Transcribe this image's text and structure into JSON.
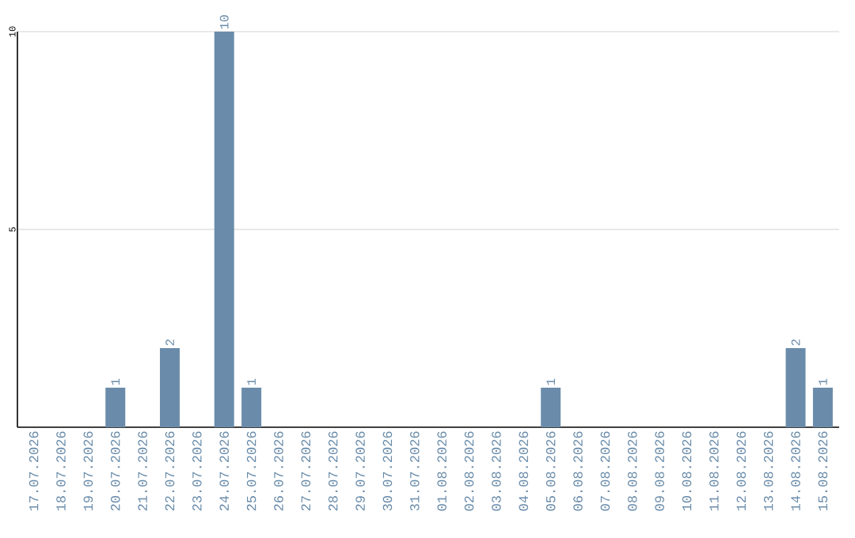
{
  "chart_data": {
    "type": "bar",
    "categories": [
      "17.07.2026",
      "18.07.2026",
      "19.07.2026",
      "20.07.2026",
      "21.07.2026",
      "22.07.2026",
      "23.07.2026",
      "24.07.2026",
      "25.07.2026",
      "26.07.2026",
      "27.07.2026",
      "28.07.2026",
      "29.07.2026",
      "30.07.2026",
      "31.07.2026",
      "01.08.2026",
      "02.08.2026",
      "03.08.2026",
      "04.08.2026",
      "05.08.2026",
      "06.08.2026",
      "07.08.2026",
      "08.08.2026",
      "09.08.2026",
      "10.08.2026",
      "11.08.2026",
      "12.08.2026",
      "13.08.2026",
      "14.08.2026",
      "15.08.2026"
    ],
    "values": [
      0,
      0,
      0,
      1,
      0,
      2,
      0,
      10,
      1,
      0,
      0,
      0,
      0,
      0,
      0,
      0,
      0,
      0,
      0,
      1,
      0,
      0,
      0,
      0,
      0,
      0,
      0,
      0,
      2,
      1
    ],
    "value_labels": [
      null,
      null,
      null,
      "1",
      null,
      "2",
      null,
      "10",
      "1",
      null,
      null,
      null,
      null,
      null,
      null,
      null,
      null,
      null,
      null,
      "1",
      null,
      null,
      null,
      null,
      null,
      null,
      null,
      null,
      "2",
      "1"
    ],
    "color": "#6a8caa",
    "ylim": [
      0,
      10
    ],
    "yticks": [
      5,
      10
    ],
    "grid": "y"
  }
}
